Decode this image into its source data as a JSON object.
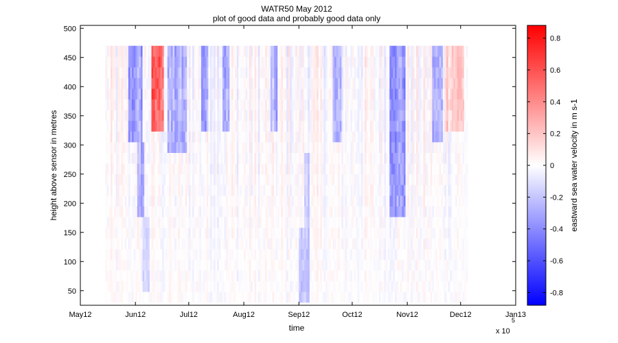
{
  "chart_data": {
    "type": "heatmap",
    "title": "WATR50 May 2012",
    "subtitle": "plot of good data and probably good data only",
    "xlabel": "time",
    "ylabel": "height above sensor in metres",
    "x_exponent_label": "x 10",
    "x_exponent_power": "5",
    "x_ticks": [
      "May12",
      "Jun12",
      "Jul12",
      "Aug12",
      "Sep12",
      "Oct12",
      "Nov12",
      "Dec12",
      "Jan13"
    ],
    "x_range": [
      "2012-05-01",
      "2013-01-01"
    ],
    "data_time_range": [
      "2012-05-15",
      "2012-12-05"
    ],
    "y_ticks": [
      50,
      100,
      150,
      200,
      250,
      300,
      350,
      400,
      450,
      500
    ],
    "ylim": [
      25,
      505
    ],
    "data_height_range": [
      30,
      470
    ],
    "colorbar": {
      "label": "eastward sea water velocity in m s-1",
      "range": [
        -0.88,
        0.88
      ],
      "ticks": [
        -0.8,
        -0.6,
        -0.4,
        -0.2,
        0,
        0.2,
        0.4,
        0.6,
        0.8
      ],
      "tick_labels": [
        "-0.8",
        "-0.6",
        "-0.4",
        "-0.2",
        "0",
        "0.2",
        "0.4",
        "0.6",
        "0.8"
      ],
      "colormap": [
        "#0000ff",
        "#ffffff",
        "#ff0000"
      ]
    },
    "grid": false,
    "velocity_features": [
      {
        "start": "2012-05-28",
        "end": "2012-06-05",
        "height_min": 300,
        "height_max": 470,
        "value": -0.35
      },
      {
        "start": "2012-06-02",
        "end": "2012-06-06",
        "height_min": 180,
        "height_max": 300,
        "value": -0.3
      },
      {
        "start": "2012-06-05",
        "end": "2012-06-09",
        "height_min": 40,
        "height_max": 180,
        "value": -0.15
      },
      {
        "start": "2012-06-10",
        "end": "2012-06-17",
        "height_min": 330,
        "height_max": 470,
        "value": 0.55
      },
      {
        "start": "2012-06-19",
        "end": "2012-06-30",
        "height_min": 290,
        "height_max": 470,
        "value": -0.3
      },
      {
        "start": "2012-07-08",
        "end": "2012-07-12",
        "height_min": 330,
        "height_max": 470,
        "value": -0.35
      },
      {
        "start": "2012-07-20",
        "end": "2012-07-24",
        "height_min": 330,
        "height_max": 470,
        "value": -0.3
      },
      {
        "start": "2012-08-16",
        "end": "2012-08-20",
        "height_min": 330,
        "height_max": 470,
        "value": -0.3
      },
      {
        "start": "2012-09-01",
        "end": "2012-09-07",
        "height_min": 30,
        "height_max": 150,
        "value": -0.2
      },
      {
        "start": "2012-09-04",
        "end": "2012-09-07",
        "height_min": 160,
        "height_max": 280,
        "value": -0.15
      },
      {
        "start": "2012-09-20",
        "end": "2012-09-25",
        "height_min": 310,
        "height_max": 470,
        "value": -0.3
      },
      {
        "start": "2012-10-22",
        "end": "2012-10-31",
        "height_min": 180,
        "height_max": 470,
        "value": -0.35
      },
      {
        "start": "2012-11-15",
        "end": "2012-11-21",
        "height_min": 300,
        "height_max": 470,
        "value": -0.3
      },
      {
        "start": "2012-11-22",
        "end": "2012-12-03",
        "height_min": 320,
        "height_max": 470,
        "value": 0.2
      }
    ]
  }
}
